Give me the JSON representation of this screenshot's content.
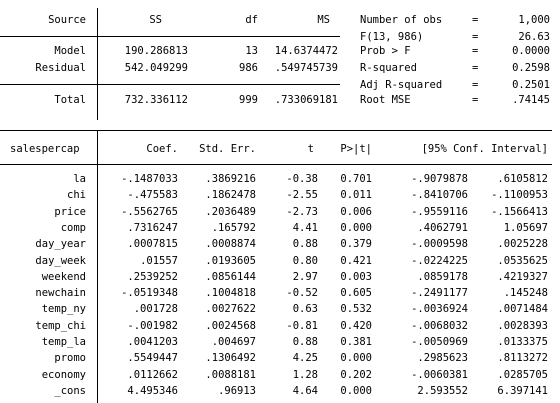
{
  "anova": {
    "headers": [
      "Source",
      "SS",
      "df",
      "MS"
    ],
    "rows": [
      {
        "source": "Model",
        "ss": "190.286813",
        "df": "13",
        "ms": "14.6374472"
      },
      {
        "source": "Residual",
        "ss": "542.049299",
        "df": "986",
        "ms": ".549745739"
      }
    ],
    "total": {
      "source": "Total",
      "ss": "732.336112",
      "df": "999",
      "ms": ".733069181"
    }
  },
  "stats": [
    {
      "label": "Number of obs",
      "eq": "=",
      "value": "1,000"
    },
    {
      "label": "F(13, 986)",
      "eq": "=",
      "value": "26.63"
    },
    {
      "label": "Prob > F",
      "eq": "=",
      "value": "0.0000"
    },
    {
      "label": "R-squared",
      "eq": "=",
      "value": "0.2598"
    },
    {
      "label": "Adj R-squared",
      "eq": "=",
      "value": "0.2501"
    },
    {
      "label": "Root MSE",
      "eq": "=",
      "value": ".74145"
    }
  ],
  "coef": {
    "headers": {
      "depvar": "salespercap",
      "coef": "Coef.",
      "se": "Std. Err.",
      "t": "t",
      "p": "P>|t|",
      "ci": "[95% Conf. Interval]"
    },
    "rows": [
      {
        "var": "la",
        "coef": "-.1487033",
        "se": ".3869216",
        "t": "-0.38",
        "p": "0.701",
        "lo": "-.9079878",
        "hi": ".6105812"
      },
      {
        "var": "chi",
        "coef": "-.475583",
        "se": ".1862478",
        "t": "-2.55",
        "p": "0.011",
        "lo": "-.8410706",
        "hi": "-.1100953"
      },
      {
        "var": "price",
        "coef": "-.5562765",
        "se": ".2036489",
        "t": "-2.73",
        "p": "0.006",
        "lo": "-.9559116",
        "hi": "-.1566413"
      },
      {
        "var": "comp",
        "coef": ".7316247",
        "se": ".165792",
        "t": "4.41",
        "p": "0.000",
        "lo": ".4062791",
        "hi": "1.05697"
      },
      {
        "var": "day_year",
        "coef": ".0007815",
        "se": ".0008874",
        "t": "0.88",
        "p": "0.379",
        "lo": "-.0009598",
        "hi": ".0025228"
      },
      {
        "var": "day_week",
        "coef": ".01557",
        "se": ".0193605",
        "t": "0.80",
        "p": "0.421",
        "lo": "-.0224225",
        "hi": ".0535625"
      },
      {
        "var": "weekend",
        "coef": ".2539252",
        "se": ".0856144",
        "t": "2.97",
        "p": "0.003",
        "lo": ".0859178",
        "hi": ".4219327"
      },
      {
        "var": "newchain",
        "coef": "-.0519348",
        "se": ".1004818",
        "t": "-0.52",
        "p": "0.605",
        "lo": "-.2491177",
        "hi": ".145248"
      },
      {
        "var": "temp_ny",
        "coef": ".001728",
        "se": ".0027622",
        "t": "0.63",
        "p": "0.532",
        "lo": "-.0036924",
        "hi": ".0071484"
      },
      {
        "var": "temp_chi",
        "coef": "-.001982",
        "se": ".0024568",
        "t": "-0.81",
        "p": "0.420",
        "lo": "-.0068032",
        "hi": ".0028393"
      },
      {
        "var": "temp_la",
        "coef": ".0041203",
        "se": ".004697",
        "t": "0.88",
        "p": "0.381",
        "lo": "-.0050969",
        "hi": ".0133375"
      },
      {
        "var": "promo",
        "coef": ".5549447",
        "se": ".1306492",
        "t": "4.25",
        "p": "0.000",
        "lo": ".2985623",
        "hi": ".8113272"
      },
      {
        "var": "economy",
        "coef": ".0112662",
        "se": ".0088181",
        "t": "1.28",
        "p": "0.202",
        "lo": "-.0060381",
        "hi": ".0285705"
      },
      {
        "var": "_cons",
        "coef": "4.495346",
        "se": ".96913",
        "t": "4.64",
        "p": "0.000",
        "lo": "2.593552",
        "hi": "6.397141"
      }
    ]
  }
}
